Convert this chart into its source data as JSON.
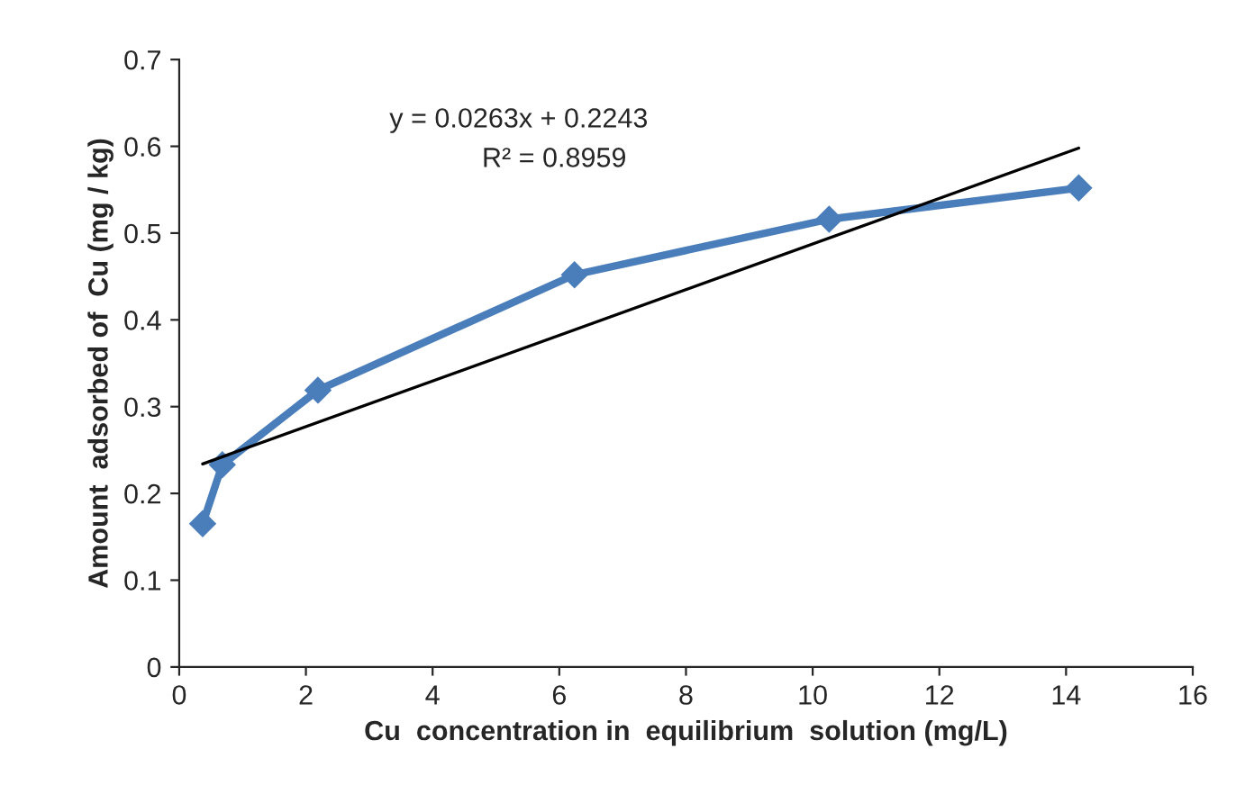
{
  "chart_data": {
    "type": "line",
    "xlabel": "Cu  concentration in  equilibrium  solution (mg/L)",
    "ylabel": "Amount  adsorbed of  Cu (mg / kg)",
    "series": [
      {
        "color": "#4a7ebb",
        "x": [
          0.37,
          0.68,
          2.19,
          6.24,
          10.26,
          14.2
        ],
        "values": [
          0.165,
          0.233,
          0.319,
          0.452,
          0.516,
          0.552
        ],
        "marker": "diamond"
      },
      {
        "color": "#000000",
        "x": [
          0.37,
          14.2
        ],
        "values": [
          0.234,
          0.598
        ],
        "marker": "none"
      }
    ],
    "annotations": [
      "y = 0.0263x + 0.2243",
      "R² = 0.8959"
    ],
    "xlim": [
      0,
      16
    ],
    "xticks": [
      0,
      2,
      4,
      6,
      8,
      10,
      12,
      14,
      16
    ],
    "ylim": [
      0,
      0.7
    ],
    "yticks": [
      0,
      0.1,
      0.2,
      0.3,
      0.4,
      0.5,
      0.6,
      0.7
    ],
    "grid": false,
    "legend": false
  }
}
